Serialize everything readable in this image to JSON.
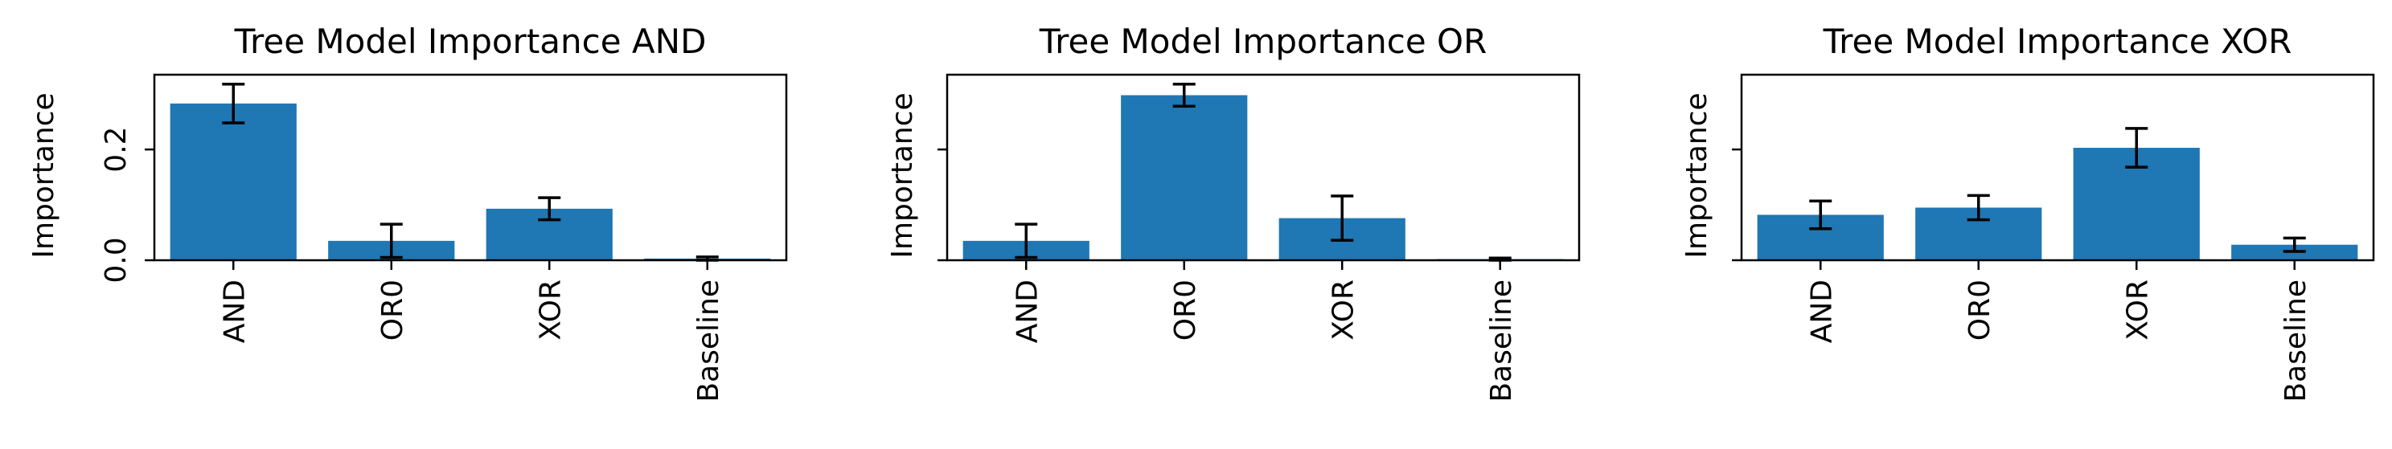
{
  "chart_data": [
    {
      "type": "bar",
      "title": "Tree Model Importance AND",
      "xlabel": "",
      "ylabel": "Importance",
      "categories": [
        "AND",
        "OR0",
        "XOR",
        "Baseline"
      ],
      "values": [
        0.283,
        0.035,
        0.093,
        0.003
      ],
      "errors": [
        0.035,
        0.03,
        0.02,
        0.003
      ],
      "ylim": [
        0,
        0.335
      ],
      "yticks": [
        0.0,
        0.2
      ],
      "ytick_labels": [
        "0.0",
        "0.2"
      ],
      "color": "#1f77b4"
    },
    {
      "type": "bar",
      "title": "Tree Model Importance OR",
      "xlabel": "",
      "ylabel": "Importance",
      "categories": [
        "AND",
        "OR0",
        "XOR",
        "Baseline"
      ],
      "values": [
        0.035,
        0.298,
        0.076,
        0.002
      ],
      "errors": [
        0.03,
        0.02,
        0.04,
        0.002
      ],
      "ylim": [
        0,
        0.335
      ],
      "yticks": [
        0.0,
        0.2
      ],
      "ytick_labels": [
        "",
        ""
      ],
      "color": "#1f77b4"
    },
    {
      "type": "bar",
      "title": "Tree Model Importance XOR",
      "xlabel": "",
      "ylabel": "Importance",
      "categories": [
        "AND",
        "OR0",
        "XOR",
        "Baseline"
      ],
      "values": [
        0.082,
        0.095,
        0.203,
        0.028
      ],
      "errors": [
        0.025,
        0.022,
        0.035,
        0.012
      ],
      "ylim": [
        0,
        0.335
      ],
      "yticks": [
        0.0,
        0.2
      ],
      "ytick_labels": [
        "",
        ""
      ],
      "color": "#1f77b4"
    }
  ]
}
